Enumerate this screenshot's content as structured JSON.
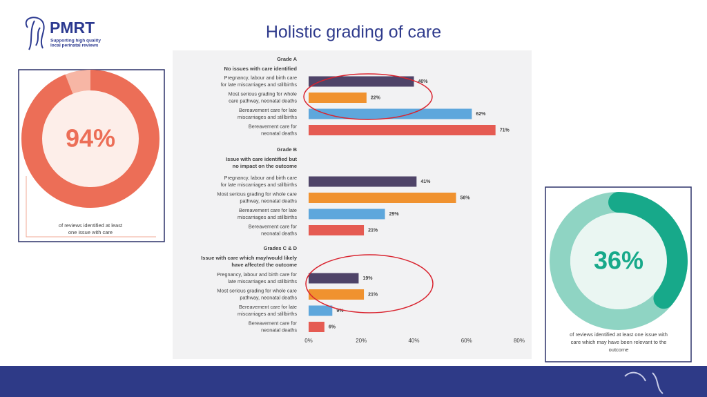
{
  "title": "Holistic grading of care",
  "logo": {
    "name": "PMRT",
    "tagline": [
      "Supporting high quality",
      "local perinatal reviews"
    ]
  },
  "chart_data": [
    {
      "type": "donut",
      "value": 94,
      "value_label": "94%",
      "caption": [
        "of reviews identified at least",
        "one issue with care"
      ],
      "color": "#ec6e57",
      "track_color": "#f7b6a5",
      "center_color": "#fdeee9"
    },
    {
      "type": "bar",
      "orientation": "horizontal",
      "colors": [
        "#4f4468",
        "#f0922f",
        "#5ea7dc",
        "#e55b52"
      ],
      "groups": [
        {
          "title": "Grade A",
          "subtitle": [
            "No issues with care identified"
          ],
          "categories": [
            [
              "Pregnancy, labour and birth care",
              "for late miscarriages and stillbirths"
            ],
            [
              "Most serious grading for whole",
              "care pathway, neonatal deaths"
            ],
            [
              "Bereavement care for late",
              "miscarriages and stillbirths"
            ],
            [
              "Bereavement care for",
              "neonatal deaths"
            ]
          ],
          "values": [
            40,
            22,
            62,
            71
          ],
          "value_labels": [
            "40%",
            "22%",
            "62%",
            "71%"
          ]
        },
        {
          "title": "Grade B",
          "subtitle": [
            "Issue with care identified but",
            "no impact on the outcome"
          ],
          "categories": [
            [
              "Pregnancy, labour and birth care",
              "for late miscarriages and stillbirths"
            ],
            [
              "Most serious grading for whole care",
              "pathway, neonatal deaths"
            ],
            [
              "Bereavement care for late",
              "miscarriages and stillbirths"
            ],
            [
              "Bereavement care for",
              "neonatal deaths"
            ]
          ],
          "values": [
            41,
            56,
            29,
            21
          ],
          "value_labels": [
            "41%",
            "56%",
            "29%",
            "21%"
          ]
        },
        {
          "title": "Grades C & D",
          "subtitle": [
            "Issue with care which may/would likely",
            "have affected the outcome"
          ],
          "categories": [
            [
              "Pregnancy, labour and birth care for",
              "late miscarriages and stillbirths"
            ],
            [
              "Most serious grading for whole care",
              "pathway, neonatal deaths"
            ],
            [
              "Bereavement care for late",
              "miscarriages and stillbirths"
            ],
            [
              "Bereavement care for",
              "neonatal deaths"
            ]
          ],
          "values": [
            19,
            21,
            9,
            6
          ],
          "value_labels": [
            "19%",
            "21%",
            "9%",
            "6%"
          ]
        }
      ],
      "xlim": [
        0,
        80
      ],
      "xticks": [
        {
          "value": 0,
          "label": "0%"
        },
        {
          "value": 20,
          "label": "20%"
        },
        {
          "value": 40,
          "label": "40%"
        },
        {
          "value": 60,
          "label": "60%"
        },
        {
          "value": 80,
          "label": "80%"
        }
      ]
    },
    {
      "type": "donut",
      "value": 36,
      "value_label": "36%",
      "caption": [
        "of reviews identified at least one issue with",
        "care which may have been relevant to the",
        "outcome"
      ],
      "color": "#17a98a",
      "track_color": "#8fd4c3",
      "center_color": "#eaf6f2"
    }
  ]
}
